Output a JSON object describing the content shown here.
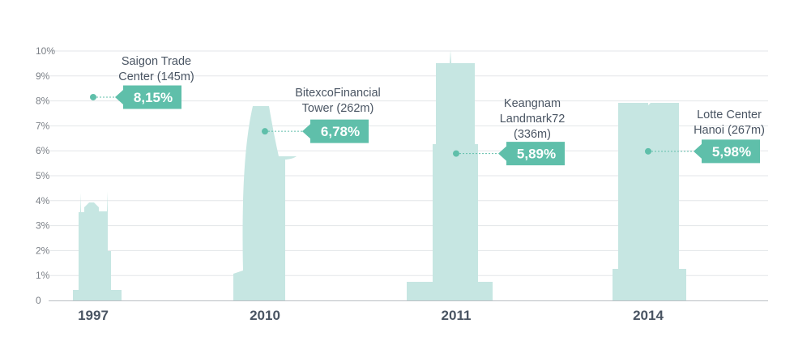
{
  "chart_data": {
    "type": "bar",
    "ylim": [
      0,
      10
    ],
    "y_unit": "%",
    "y_ticks": [
      "0",
      "1%",
      "2%",
      "3%",
      "4%",
      "5%",
      "6%",
      "7%",
      "8%",
      "9%",
      "10%"
    ],
    "categories": [
      "1997",
      "2010",
      "2011",
      "2014"
    ],
    "buildings": [
      {
        "name_lines": [
          "Saigon Trade",
          "Center (145m)"
        ],
        "height_m": 145,
        "label": "8,15%"
      },
      {
        "name_lines": [
          "BitexcoFinancial",
          "Tower (262m)"
        ],
        "height_m": 262,
        "label": "6,78%"
      },
      {
        "name_lines": [
          "Keangnam",
          "Landmark72",
          "(336m)"
        ],
        "height_m": 336,
        "label": "5,89%"
      },
      {
        "name_lines": [
          "Lotte Center",
          "Hanoi (267m)"
        ],
        "height_m": 267,
        "label": "5,98%"
      }
    ],
    "values": [
      8.15,
      6.78,
      5.89,
      5.98
    ],
    "grid": true,
    "colors": {
      "silhouette": "#c6e6e2",
      "callout": "#5fbfaa",
      "dot": "#5fbfaa",
      "grid": "#e3e6e8",
      "axis": "#b9bec3"
    }
  }
}
